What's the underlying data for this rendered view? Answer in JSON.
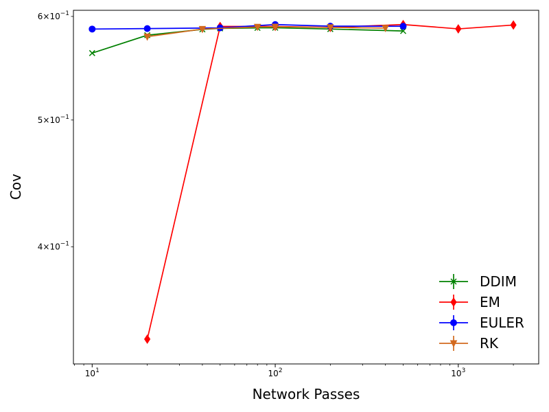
{
  "chart_data": {
    "type": "line",
    "title": "",
    "xlabel": "Network Passes",
    "ylabel": "Cov",
    "xscale": "log",
    "yscale": "log",
    "xlim": [
      7.9,
      2750
    ],
    "ylim": [
      0.3255,
      0.6065
    ],
    "x_ticks": [
      {
        "value": 10,
        "base": "10",
        "exp": "1"
      },
      {
        "value": 100,
        "base": "10",
        "exp": "2"
      },
      {
        "value": 1000,
        "base": "10",
        "exp": "3"
      }
    ],
    "y_ticks": [
      {
        "value": 0.4,
        "mant": "4",
        "base": "10",
        "exp": "−1",
        "sep": "×"
      },
      {
        "value": 0.5,
        "mant": "5",
        "base": "10",
        "exp": "−1",
        "sep": "×"
      },
      {
        "value": 0.6,
        "mant": "6",
        "base": "10",
        "exp": "−1",
        "sep": "×"
      }
    ],
    "grid": false,
    "legend_position": "lower-right",
    "series": [
      {
        "name": "DDIM",
        "color": "#008000",
        "marker": "x",
        "x": [
          10,
          20,
          40,
          50,
          80,
          100,
          200,
          500
        ],
        "y": [
          0.5625,
          0.5805,
          0.5865,
          0.5875,
          0.588,
          0.5882,
          0.5868,
          0.5848
        ]
      },
      {
        "name": "EM",
        "color": "#ff0000",
        "marker": "diamond",
        "x": [
          20,
          50,
          100,
          200,
          500,
          1000,
          2000
        ],
        "y": [
          0.34,
          0.5895,
          0.5895,
          0.5885,
          0.5915,
          0.587,
          0.591
        ]
      },
      {
        "name": "EULER",
        "color": "#0000ff",
        "marker": "circle",
        "x": [
          10,
          20,
          50,
          100,
          200,
          500
        ],
        "y": [
          0.5868,
          0.5873,
          0.588,
          0.5915,
          0.5898,
          0.5897
        ]
      },
      {
        "name": "RK",
        "color": "#d2691e",
        "marker": "triangle-down",
        "x": [
          20,
          40,
          80,
          100,
          200,
          400
        ],
        "y": [
          0.579,
          0.5868,
          0.589,
          0.5892,
          0.5885,
          0.5878
        ]
      }
    ]
  }
}
